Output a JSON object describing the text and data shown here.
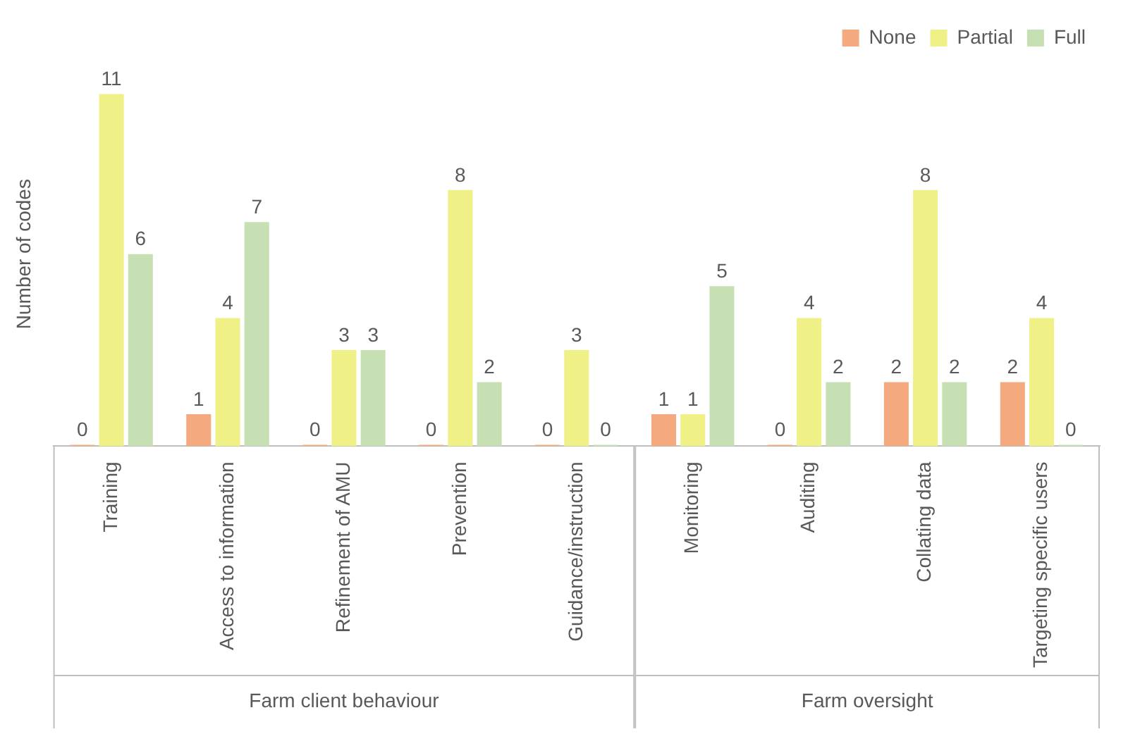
{
  "chart_data": {
    "type": "bar",
    "ylabel": "Number of codes",
    "categories": [
      "Training",
      "Access to information",
      "Refinement of AMU",
      "Prevention",
      "Guidance/instruction",
      "Monitoring",
      "Auditing",
      "Collating data",
      "Targeting specific users"
    ],
    "series": [
      {
        "name": "None",
        "color": "#f4a97e",
        "values": [
          0,
          1,
          0,
          0,
          0,
          1,
          0,
          2,
          2
        ]
      },
      {
        "name": "Partial",
        "color": "#eff086",
        "values": [
          11,
          4,
          3,
          8,
          3,
          1,
          4,
          8,
          4
        ]
      },
      {
        "name": "Full",
        "color": "#c6e0b4",
        "values": [
          6,
          7,
          3,
          2,
          0,
          5,
          2,
          2,
          0
        ]
      }
    ],
    "annotations": [
      "Farm client behaviour",
      "Farm oversight"
    ],
    "data_labels": true,
    "legend": "top right",
    "grid": false
  }
}
